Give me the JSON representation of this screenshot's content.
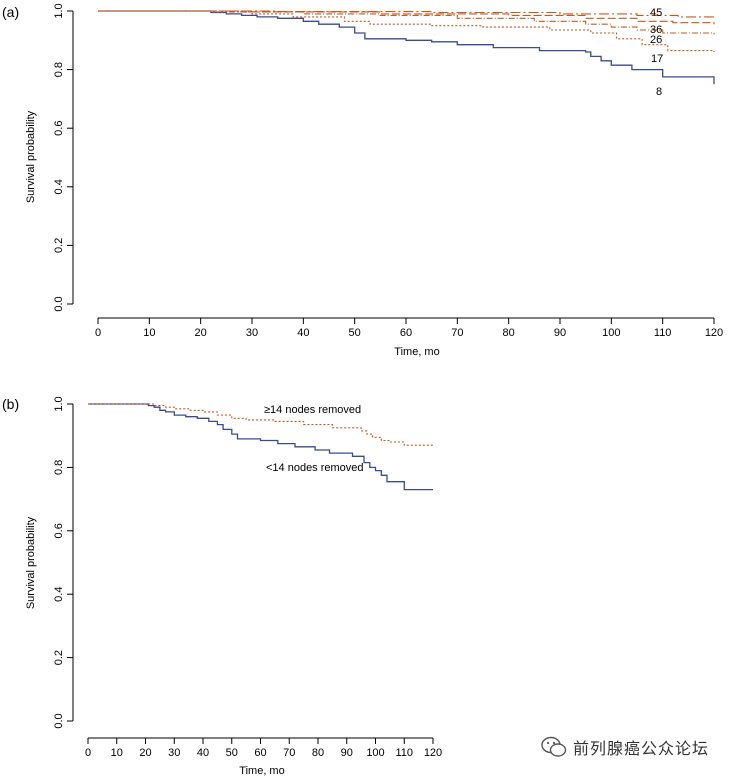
{
  "chart_data": [
    {
      "panel_label": "(a)",
      "type": "line",
      "step": true,
      "xlabel": "Time, mo",
      "ylabel": "Survival probability",
      "xlim": [
        0,
        120
      ],
      "ylim": [
        0,
        1
      ],
      "xticks": [
        0,
        10,
        20,
        30,
        40,
        50,
        60,
        70,
        80,
        90,
        100,
        110,
        120
      ],
      "yticks": [
        "0.0",
        "0.2",
        "0.4",
        "0.6",
        "0.8",
        "1.0"
      ],
      "grid": false,
      "series": [
        {
          "name": "8",
          "color": "#3c4a8e",
          "dash": "solid",
          "x": [
            0,
            20,
            22,
            25,
            28,
            31,
            35,
            40,
            43,
            47,
            50,
            52,
            60,
            65,
            70,
            77,
            86,
            95,
            96,
            98,
            100,
            104,
            110,
            120
          ],
          "y": [
            1.0,
            1.0,
            0.995,
            0.99,
            0.985,
            0.98,
            0.975,
            0.965,
            0.955,
            0.945,
            0.925,
            0.905,
            0.9,
            0.895,
            0.885,
            0.875,
            0.865,
            0.86,
            0.845,
            0.83,
            0.815,
            0.8,
            0.775,
            0.75
          ]
        },
        {
          "name": "17",
          "color": "#c65a1e",
          "dash": "2,2",
          "x": [
            0,
            22,
            30,
            38,
            48,
            53,
            65,
            75,
            88,
            96,
            101,
            106,
            111,
            120
          ],
          "y": [
            1.0,
            0.997,
            0.99,
            0.98,
            0.965,
            0.955,
            0.95,
            0.945,
            0.935,
            0.925,
            0.905,
            0.885,
            0.865,
            0.86
          ]
        },
        {
          "name": "26",
          "color": "#c65a1e",
          "dash": "6,2,1,2",
          "x": [
            0,
            25,
            40,
            55,
            70,
            85,
            95,
            100,
            105,
            110,
            120
          ],
          "y": [
            1.0,
            0.997,
            0.99,
            0.985,
            0.975,
            0.965,
            0.955,
            0.945,
            0.935,
            0.925,
            0.92
          ]
        },
        {
          "name": "36",
          "color": "#c65a1e",
          "dash": "8,3",
          "x": [
            0,
            30,
            55,
            80,
            95,
            105,
            112,
            120
          ],
          "y": [
            1.0,
            0.997,
            0.99,
            0.985,
            0.975,
            0.965,
            0.96,
            0.955
          ]
        },
        {
          "name": "45",
          "color": "#c65a1e",
          "dash": "10,3,2,3",
          "x": [
            0,
            35,
            65,
            90,
            105,
            113,
            120
          ],
          "y": [
            1.0,
            0.998,
            0.995,
            0.99,
            0.985,
            0.98,
            0.98
          ]
        }
      ]
    },
    {
      "panel_label": "(b)",
      "type": "line",
      "step": true,
      "xlabel": "Time, mo",
      "ylabel": "Survival probability",
      "xlim": [
        0,
        120
      ],
      "ylim": [
        0,
        1
      ],
      "xticks": [
        0,
        10,
        20,
        30,
        40,
        50,
        60,
        70,
        80,
        90,
        100,
        110,
        120
      ],
      "yticks": [
        "0.0",
        "0.2",
        "0.4",
        "0.6",
        "0.8",
        "1.0"
      ],
      "grid": false,
      "series": [
        {
          "name": "<14 nodes removed",
          "color": "#3c4a8e",
          "dash": "solid",
          "x": [
            0,
            19,
            21,
            23,
            25,
            27,
            30,
            34,
            38,
            42,
            45,
            47,
            50,
            52,
            60,
            66,
            72,
            79,
            84,
            92,
            96,
            98,
            100,
            102,
            104,
            110,
            120
          ],
          "y": [
            1.0,
            1.0,
            0.995,
            0.99,
            0.98,
            0.975,
            0.965,
            0.96,
            0.955,
            0.945,
            0.935,
            0.92,
            0.905,
            0.89,
            0.885,
            0.875,
            0.865,
            0.855,
            0.845,
            0.835,
            0.815,
            0.8,
            0.79,
            0.775,
            0.755,
            0.73,
            0.73
          ]
        },
        {
          "name": "≥14 nodes removed",
          "color": "#c65a1e",
          "dash": "2,2",
          "x": [
            0,
            23,
            27,
            30,
            35,
            40,
            45,
            50,
            55,
            65,
            75,
            85,
            95,
            97,
            99,
            102,
            105,
            110,
            120
          ],
          "y": [
            1.0,
            0.995,
            0.99,
            0.985,
            0.98,
            0.975,
            0.965,
            0.955,
            0.95,
            0.945,
            0.935,
            0.925,
            0.915,
            0.905,
            0.895,
            0.885,
            0.88,
            0.87,
            0.865
          ]
        }
      ]
    }
  ],
  "annotations_a": [
    "45",
    "36",
    "26",
    "17",
    "8"
  ],
  "annotations_b": [
    "≥14 nodes removed",
    "<14 nodes removed"
  ],
  "watermark": {
    "text": "前列腺癌公众论坛",
    "icon": "wechat-icon"
  }
}
